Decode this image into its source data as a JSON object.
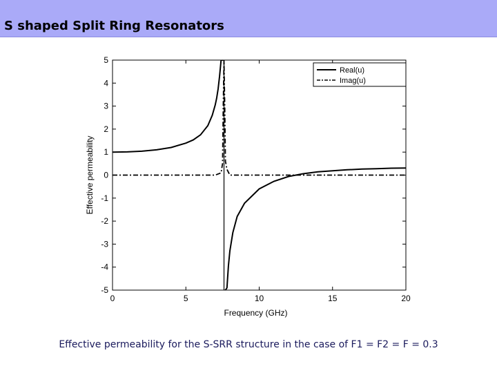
{
  "slide": {
    "title": "S shaped Split Ring Resonators",
    "caption": "Effective permeability for the S-SRR structure in the case of F1 = F2 = F = 0.3"
  },
  "colors": {
    "title_bar": "#aaaaf8",
    "caption_text": "#1a1a5c",
    "series": "#000000"
  },
  "chart_data": {
    "type": "line",
    "title": "",
    "xlabel": "Frequency (GHz)",
    "ylabel": "Effective permeability",
    "xlim": [
      0,
      20
    ],
    "ylim": [
      -5,
      5
    ],
    "xticks": [
      0,
      5,
      10,
      15,
      20
    ],
    "yticks": [
      -5,
      -4,
      -3,
      -2,
      -1,
      0,
      1,
      2,
      3,
      4,
      5
    ],
    "grid": false,
    "legend_position": "top-right",
    "resonance_ghz": 7.6,
    "zero_crossing_ghz": 12.4,
    "series": [
      {
        "name": "Real(u)",
        "style": "solid",
        "x": [
          0,
          1,
          2,
          3,
          4,
          5,
          5.5,
          6,
          6.5,
          6.8,
          7.0,
          7.1,
          7.2,
          7.3,
          7.4,
          7.5,
          7.55,
          7.65,
          7.7,
          7.8,
          7.9,
          8.0,
          8.2,
          8.5,
          9,
          10,
          11,
          12,
          13,
          14,
          15,
          16,
          17,
          18,
          19,
          20
        ],
        "values": [
          1.0,
          1.01,
          1.04,
          1.1,
          1.2,
          1.39,
          1.53,
          1.75,
          2.15,
          2.6,
          3.05,
          3.35,
          3.75,
          4.3,
          5.0,
          5.0,
          5.0,
          -5.0,
          -5.0,
          -4.9,
          -3.95,
          -3.3,
          -2.5,
          -1.8,
          -1.22,
          -0.6,
          -0.27,
          -0.06,
          0.06,
          0.14,
          0.19,
          0.23,
          0.26,
          0.28,
          0.3,
          0.31
        ]
      },
      {
        "name": "Imag(u)",
        "style": "dash-dot",
        "x": [
          0,
          7.0,
          7.4,
          7.5,
          7.55,
          7.6,
          7.65,
          7.7,
          7.8,
          8.0,
          20
        ],
        "values": [
          0,
          0,
          0.1,
          0.5,
          3.0,
          5.0,
          3.0,
          0.6,
          0.25,
          0,
          0
        ]
      }
    ]
  }
}
